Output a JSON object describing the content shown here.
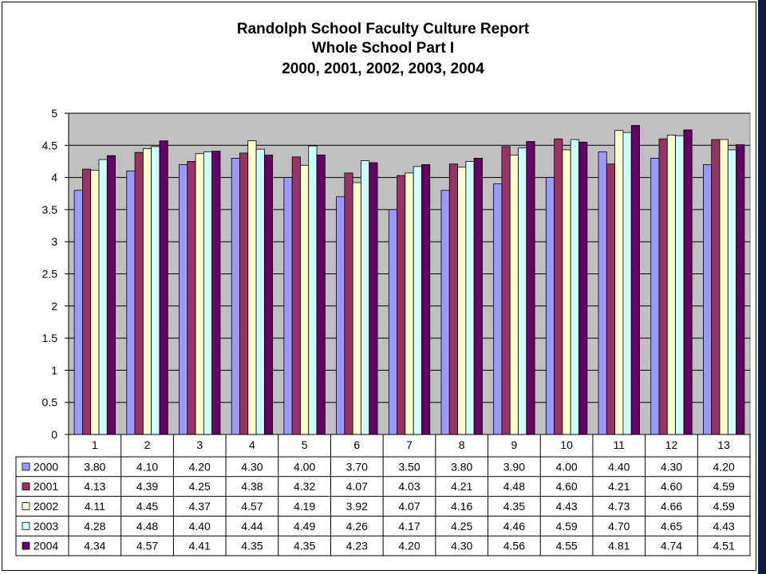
{
  "chart_data": {
    "type": "bar",
    "title_lines": [
      "Randolph School Faculty Culture Report",
      "Whole School Part I",
      "2000, 2001, 2002, 2003, 2004"
    ],
    "categories": [
      "1",
      "2",
      "3",
      "4",
      "5",
      "6",
      "7",
      "8",
      "9",
      "10",
      "11",
      "12",
      "13"
    ],
    "yticks": [
      "0",
      "0.5",
      "1",
      "1.5",
      "2",
      "2.5",
      "3",
      "3.5",
      "4",
      "4.5",
      "5"
    ],
    "ylim": [
      0,
      5
    ],
    "grid": true,
    "legend": "data-table-left",
    "series": [
      {
        "name": "2000",
        "color": "#9999ff",
        "values": [
          3.8,
          4.1,
          4.2,
          4.3,
          4.0,
          3.7,
          3.5,
          3.8,
          3.9,
          4.0,
          4.4,
          4.3,
          4.2
        ],
        "labels": [
          "3.80",
          "4.10",
          "4.20",
          "4.30",
          "4.00",
          "3.70",
          "3.50",
          "3.80",
          "3.90",
          "4.00",
          "4.40",
          "4.30",
          "4.20"
        ]
      },
      {
        "name": "2001",
        "color": "#993366",
        "values": [
          4.13,
          4.39,
          4.25,
          4.38,
          4.32,
          4.07,
          4.03,
          4.21,
          4.48,
          4.6,
          4.21,
          4.6,
          4.59
        ],
        "labels": [
          "4.13",
          "4.39",
          "4.25",
          "4.38",
          "4.32",
          "4.07",
          "4.03",
          "4.21",
          "4.48",
          "4.60",
          "4.21",
          "4.60",
          "4.59"
        ]
      },
      {
        "name": "2002",
        "color": "#ffffcc",
        "values": [
          4.11,
          4.45,
          4.37,
          4.57,
          4.19,
          3.92,
          4.07,
          4.16,
          4.35,
          4.43,
          4.73,
          4.66,
          4.59
        ],
        "labels": [
          "4.11",
          "4.45",
          "4.37",
          "4.57",
          "4.19",
          "3.92",
          "4.07",
          "4.16",
          "4.35",
          "4.43",
          "4.73",
          "4.66",
          "4.59"
        ]
      },
      {
        "name": "2003",
        "color": "#ccffff",
        "values": [
          4.28,
          4.48,
          4.4,
          4.44,
          4.49,
          4.26,
          4.17,
          4.25,
          4.46,
          4.59,
          4.7,
          4.65,
          4.43
        ],
        "labels": [
          "4.28",
          "4.48",
          "4.40",
          "4.44",
          "4.49",
          "4.26",
          "4.17",
          "4.25",
          "4.46",
          "4.59",
          "4.70",
          "4.65",
          "4.43"
        ]
      },
      {
        "name": "2004",
        "color": "#660066",
        "values": [
          4.34,
          4.57,
          4.41,
          4.35,
          4.35,
          4.23,
          4.2,
          4.3,
          4.56,
          4.55,
          4.81,
          4.74,
          4.51
        ],
        "labels": [
          "4.34",
          "4.57",
          "4.41",
          "4.35",
          "4.35",
          "4.23",
          "4.20",
          "4.30",
          "4.56",
          "4.55",
          "4.81",
          "4.74",
          "4.51"
        ]
      }
    ],
    "plot_background": "#c0c0c0"
  }
}
